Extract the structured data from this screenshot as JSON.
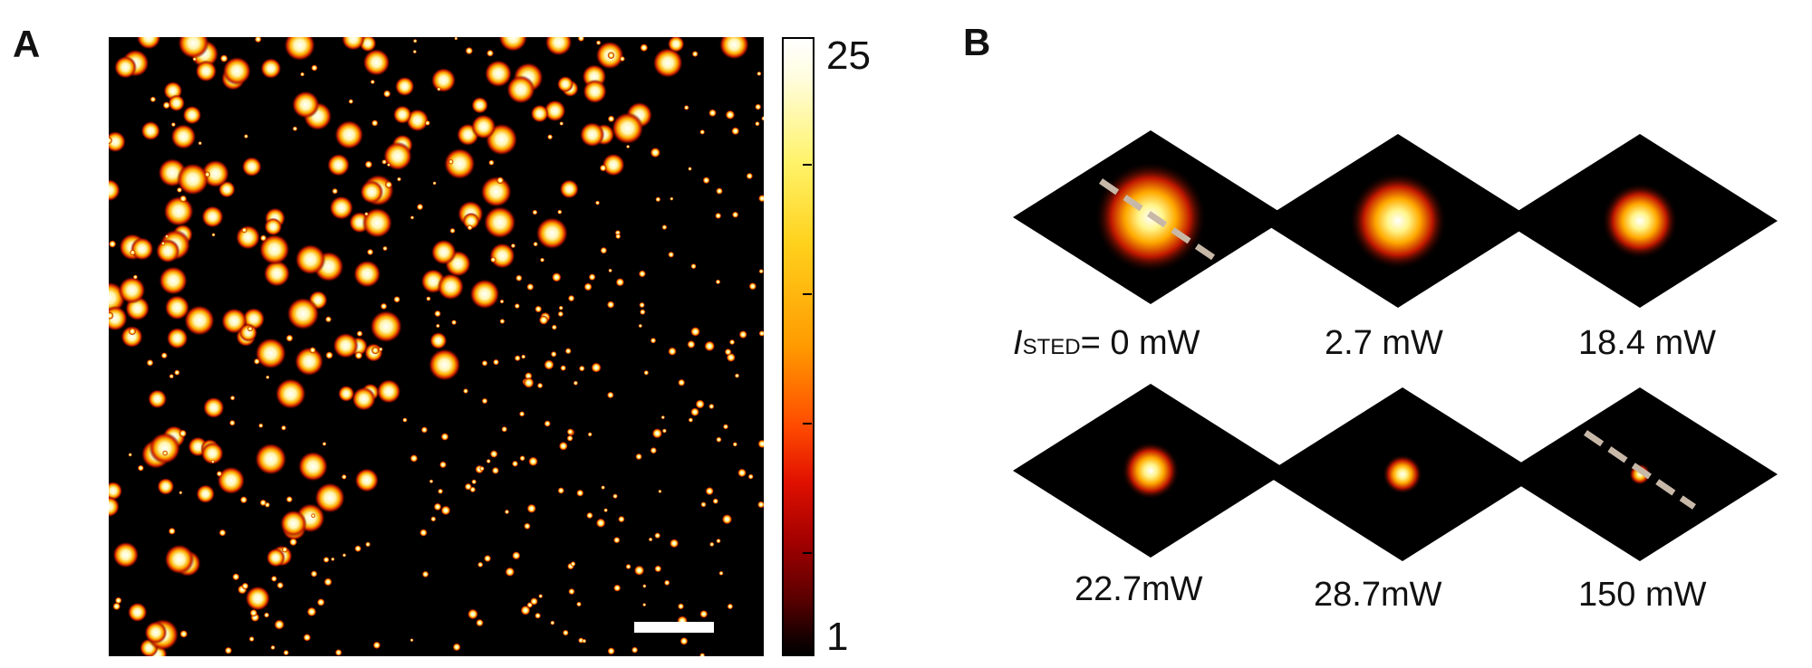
{
  "panel_a": {
    "label": "A",
    "colorbar": {
      "max_label": "25",
      "min_label": "1"
    }
  },
  "panel_b": {
    "label": "B",
    "power_labels": [
      {
        "symbol": "I",
        "subscript": "STED",
        "value": "= 0 mW"
      },
      {
        "value": "2.7 mW"
      },
      {
        "value": "18.4 mW"
      },
      {
        "value": "22.7mW"
      },
      {
        "value": "28.7mW"
      },
      {
        "value": "150 mW"
      }
    ]
  },
  "colors": {
    "background": "#ffffff",
    "image_black": "#000000",
    "scale_bar": "#ffffff",
    "line_profile": "#c8b8a8",
    "colormap": [
      "#000000",
      "#5a0000",
      "#a00000",
      "#e01000",
      "#ff4a00",
      "#ff9a00",
      "#ffd21d",
      "#fff36a",
      "#ffffff"
    ]
  }
}
